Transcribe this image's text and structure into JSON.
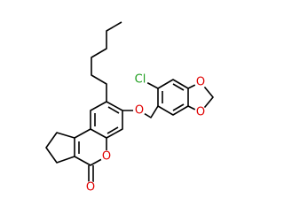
{
  "atoms": [
    {
      "label": "Cl"
    },
    {
      "label": "O"
    },
    {
      "label": "O"
    },
    {
      "label": "O"
    },
    {
      "label": "O"
    },
    {
      "label": "O"
    }
  ]
}
